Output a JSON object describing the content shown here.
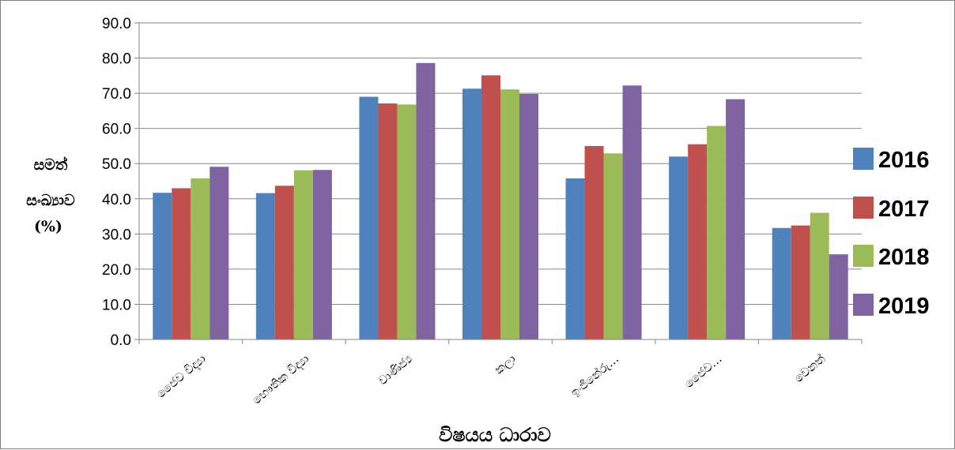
{
  "chart_data": {
    "type": "bar",
    "categories": [
      "ජෛව විද්‍යා",
      "භෞතික විද්‍යා",
      "වාණිජ්‍ය",
      "කලා",
      "ඉංජිනේරු…",
      "ජෛව…",
      "වෙනත්"
    ],
    "series": [
      {
        "name": "2016",
        "color": "#4f81bd",
        "values": [
          41.7,
          41.6,
          69.0,
          71.3,
          45.8,
          52.0,
          31.7
        ]
      },
      {
        "name": "2017",
        "color": "#c0504d",
        "values": [
          43.0,
          43.7,
          67.1,
          75.1,
          55.0,
          55.5,
          32.4
        ]
      },
      {
        "name": "2018",
        "color": "#9bbb59",
        "values": [
          45.8,
          48.1,
          66.8,
          71.1,
          52.9,
          60.7,
          36.0
        ]
      },
      {
        "name": "2019",
        "color": "#8064a2",
        "values": [
          49.1,
          48.2,
          78.6,
          69.8,
          72.2,
          68.3,
          24.2
        ]
      }
    ],
    "ylim": [
      0,
      90
    ],
    "yticks": [
      "0.0",
      "10.0",
      "20.0",
      "30.0",
      "40.0",
      "50.0",
      "60.0",
      "70.0",
      "80.0",
      "90.0"
    ],
    "ylabel": [
      "සමත්",
      "සංඛ්‍යාව",
      "(%)"
    ],
    "xlabel": "විෂයය ධාරාව",
    "legend_position": "right",
    "grid": true
  }
}
